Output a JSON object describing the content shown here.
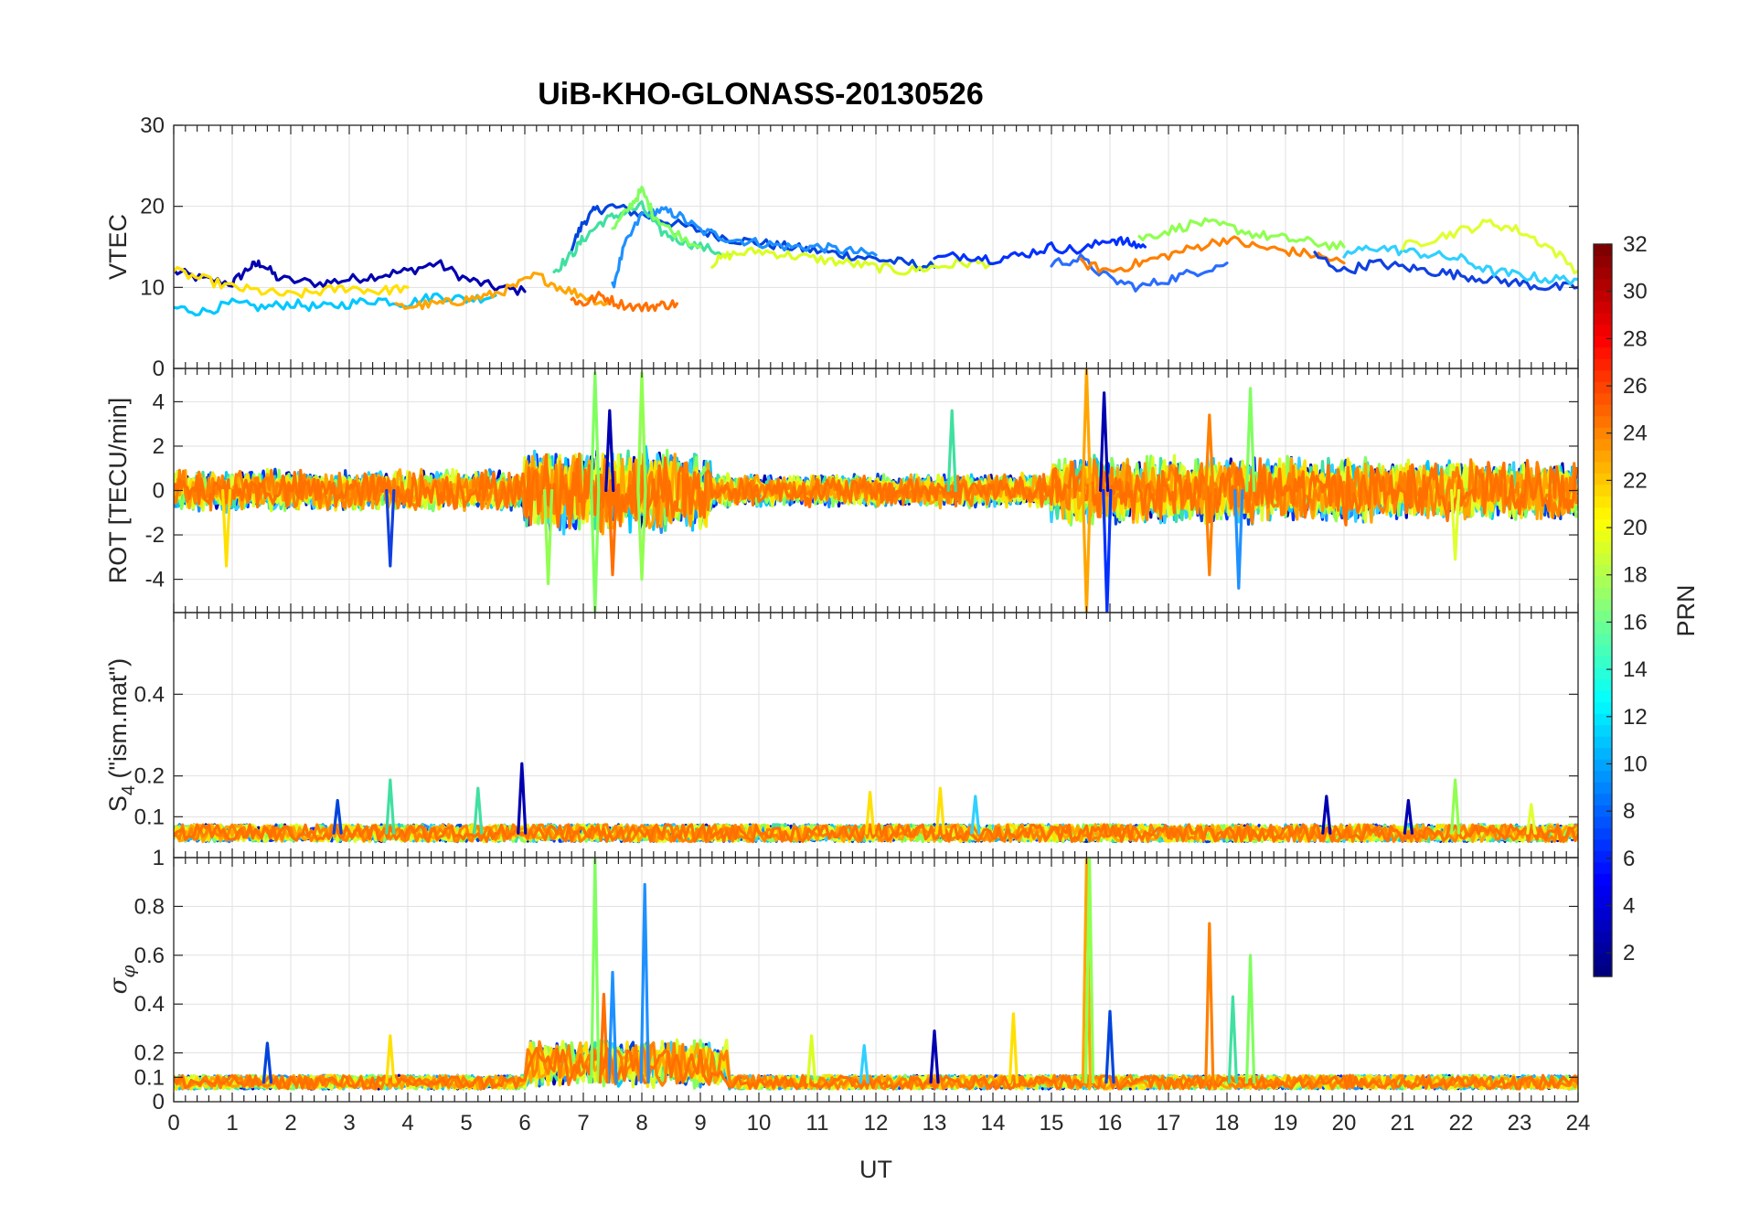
{
  "chart_data": {
    "type": "line",
    "title": "UiB-KHO-GLONASS-20130526",
    "xlabel": "UT",
    "xlim": [
      0,
      24
    ],
    "x_ticks": [
      "0",
      "1",
      "2",
      "3",
      "4",
      "5",
      "6",
      "7",
      "8",
      "9",
      "10",
      "11",
      "12",
      "13",
      "14",
      "15",
      "16",
      "17",
      "18",
      "19",
      "20",
      "21",
      "22",
      "23",
      "24"
    ],
    "colorbar": {
      "label": "PRN",
      "range": [
        1,
        32
      ],
      "ticks": [
        "2",
        "4",
        "6",
        "8",
        "10",
        "12",
        "14",
        "16",
        "18",
        "20",
        "22",
        "24",
        "26",
        "28",
        "30",
        "32"
      ],
      "colormap": "jet"
    },
    "panels": [
      {
        "id": "vtec",
        "ylabel": "VTEC",
        "ylim": [
          0,
          30
        ],
        "y_ticks": [
          "0",
          "10",
          "20",
          "30"
        ],
        "y_tick_values": [
          0,
          10,
          20,
          30
        ],
        "series": [
          {
            "color": "#0000b0",
            "x": [
              0,
              0.5,
              1,
              1.3,
              1.5,
              1.8,
              2.5,
              3,
              3.5,
              4,
              4.5,
              5,
              5.5,
              6
            ],
            "y": [
              12,
              11,
              10.5,
              12.5,
              13,
              11,
              10.5,
              11,
              11.5,
              12,
              13,
              11,
              10,
              9.5
            ]
          },
          {
            "color": "#0044dd",
            "x": [
              6.8,
              7,
              7.2,
              7.5,
              8,
              8.5,
              9,
              9.5,
              10,
              10.5,
              11,
              11.5,
              12,
              12.5,
              13
            ],
            "y": [
              15,
              18,
              19.5,
              20,
              19,
              18,
              17,
              16,
              15.5,
              15,
              14.5,
              14,
              13.5,
              13,
              12.5
            ]
          },
          {
            "color": "#1e90ff",
            "x": [
              7.5,
              7.7,
              8,
              8.3,
              8.6,
              9,
              9.5,
              10,
              10.5,
              11,
              11.5,
              12
            ],
            "y": [
              10,
              15,
              19,
              19.5,
              19,
              17,
              16,
              15.5,
              15,
              15,
              14.5,
              14
            ]
          },
          {
            "color": "#00c8ff",
            "x": [
              0,
              0.5,
              1,
              1.5,
              2,
              2.5,
              3,
              3.5,
              4,
              4.5,
              5,
              5.5
            ],
            "y": [
              7.5,
              7,
              8,
              7.5,
              8,
              7.5,
              8,
              8.5,
              8,
              9,
              8.5,
              9
            ]
          },
          {
            "color": "#40e0a0",
            "x": [
              6.5,
              6.8,
              7,
              7.3,
              7.6,
              8,
              8.3,
              8.6,
              9,
              9.5
            ],
            "y": [
              12,
              14,
              16,
              18,
              19,
              20,
              17,
              16,
              15,
              14
            ]
          },
          {
            "color": "#80ff60",
            "x": [
              7.5,
              7.8,
              8,
              8.2,
              8.5,
              9
            ],
            "y": [
              17,
              20,
              22,
              19,
              17,
              15
            ]
          },
          {
            "color": "#d8ff20",
            "x": [
              9.2,
              9.5,
              10,
              10.5,
              11,
              11.5,
              12,
              12.5,
              13,
              13.5,
              14
            ],
            "y": [
              13,
              14,
              14.5,
              14,
              13.5,
              13,
              12.5,
              12,
              12.5,
              13,
              13
            ]
          },
          {
            "color": "#ffe000",
            "x": [
              0,
              0.5,
              1,
              1.5,
              2,
              2.5,
              3,
              3.5,
              4
            ],
            "y": [
              12,
              11,
              10,
              9.5,
              9,
              9.5,
              10,
              9.5,
              10
            ]
          },
          {
            "color": "#ffa500",
            "x": [
              3.8,
              4.2,
              4.6,
              5,
              5.4,
              5.8,
              6.2,
              6.6,
              7,
              7.4
            ],
            "y": [
              7.5,
              7.8,
              8,
              8.5,
              9,
              10,
              11.5,
              10,
              9,
              8
            ]
          },
          {
            "color": "#ff7000",
            "x": [
              6.8,
              7,
              7.3,
              7.6,
              8,
              8.3,
              8.6
            ],
            "y": [
              8.5,
              8,
              9,
              8,
              7.5,
              7.8,
              8
            ]
          },
          {
            "color": "#0030ff",
            "x": [
              13,
              13.5,
              14,
              14.5,
              15,
              15.5,
              16,
              16.3,
              16.6
            ],
            "y": [
              13.5,
              14,
              13.5,
              14,
              15,
              14.5,
              16,
              15.5,
              15
            ]
          },
          {
            "color": "#2a6cff",
            "x": [
              15,
              15.5,
              16,
              16.5,
              17,
              17.5,
              18
            ],
            "y": [
              13,
              13.5,
              11,
              10,
              11,
              12,
              13
            ]
          },
          {
            "color": "#90ff50",
            "x": [
              16.5,
              17,
              17.5,
              18,
              18.5,
              19,
              19.5,
              20
            ],
            "y": [
              16,
              17,
              18,
              17.5,
              16.5,
              16,
              15.5,
              15
            ]
          },
          {
            "color": "#ff8000",
            "x": [
              15.5,
              16,
              16.5,
              17,
              17.5,
              18,
              18.5,
              19,
              19.5,
              20
            ],
            "y": [
              13,
              12,
              13,
              14,
              15,
              16,
              15,
              14.5,
              14,
              13
            ]
          },
          {
            "color": "#1040e0",
            "x": [
              19.5,
              20,
              20.5,
              21,
              21.5,
              22,
              22.5,
              23,
              23.5,
              24
            ],
            "y": [
              14,
              12,
              13,
              12.5,
              12,
              11.5,
              11,
              10.5,
              10,
              10
            ]
          },
          {
            "color": "#30d0ff",
            "x": [
              20,
              20.5,
              21,
              21.5,
              22,
              22.5,
              23,
              23.5,
              24
            ],
            "y": [
              14,
              15,
              14.5,
              14,
              13.5,
              12,
              11.5,
              11,
              11
            ]
          },
          {
            "color": "#e0ff30",
            "x": [
              21,
              21.5,
              22,
              22.5,
              23,
              23.5,
              24
            ],
            "y": [
              15,
              16,
              17,
              18,
              17,
              15,
              12
            ]
          }
        ]
      },
      {
        "id": "rot",
        "ylabel": "ROT [TECU/min]",
        "ylim": [
          -5.5,
          5.5
        ],
        "y_ticks": [
          "-4",
          "-2",
          "0",
          "2",
          "4"
        ],
        "y_tick_values": [
          -4,
          -2,
          0,
          2,
          4
        ],
        "noise_bands": [
          {
            "x0": 0,
            "x1": 6,
            "amp": 1.0
          },
          {
            "x0": 6,
            "x1": 9.2,
            "amp": 2.0
          },
          {
            "x0": 9.2,
            "x1": 15,
            "amp": 0.8
          },
          {
            "x0": 15,
            "x1": 20.5,
            "amp": 1.6
          },
          {
            "x0": 20.5,
            "x1": 24,
            "amp": 1.4
          }
        ],
        "spikes": [
          {
            "x": 7.2,
            "y": 5.3,
            "color": "#80ff60"
          },
          {
            "x": 7.2,
            "y": -5.5,
            "color": "#80ff60"
          },
          {
            "x": 8.0,
            "y": 5.3,
            "color": "#90ff50"
          },
          {
            "x": 8.0,
            "y": -4,
            "color": "#90ff50"
          },
          {
            "x": 7.45,
            "y": 3.6,
            "color": "#0000b0"
          },
          {
            "x": 7.5,
            "y": -3.8,
            "color": "#ff7000"
          },
          {
            "x": 15.6,
            "y": 5.5,
            "color": "#ffa500"
          },
          {
            "x": 15.6,
            "y": -5.5,
            "color": "#ffa500"
          },
          {
            "x": 15.95,
            "y": -5.5,
            "color": "#0030ff"
          },
          {
            "x": 15.9,
            "y": 4.4,
            "color": "#0000b0"
          },
          {
            "x": 17.7,
            "y": 3.4,
            "color": "#ff8000"
          },
          {
            "x": 17.7,
            "y": -3.8,
            "color": "#ff8000"
          },
          {
            "x": 18.4,
            "y": 4.6,
            "color": "#80ff60"
          },
          {
            "x": 18.2,
            "y": -4.4,
            "color": "#1e90ff"
          },
          {
            "x": 13.3,
            "y": 3.6,
            "color": "#40e0a0"
          },
          {
            "x": 6.4,
            "y": -4.2,
            "color": "#90ff50"
          },
          {
            "x": 3.7,
            "y": -3.4,
            "color": "#1040e0"
          },
          {
            "x": 0.9,
            "y": -3.4,
            "color": "#ffe000"
          },
          {
            "x": 21.9,
            "y": -3.1,
            "color": "#e0ff30"
          }
        ]
      },
      {
        "id": "s4",
        "ylabel": "S",
        "ylabel_subscript": "4",
        "ylabel_suffix": " (\"ism.mat\")",
        "ylim": [
          0,
          0.6
        ],
        "y_ticks": [
          "0.1",
          "0.2",
          "0.4"
        ],
        "y_tick_values": [
          0.1,
          0.2,
          0.4
        ],
        "baseline": 0.06,
        "spikes": [
          {
            "x": 5.95,
            "y": 0.23,
            "color": "#0000b0"
          },
          {
            "x": 3.7,
            "y": 0.19,
            "color": "#40e0a0"
          },
          {
            "x": 5.2,
            "y": 0.17,
            "color": "#40e0a0"
          },
          {
            "x": 13.1,
            "y": 0.17,
            "color": "#ffe000"
          },
          {
            "x": 11.9,
            "y": 0.16,
            "color": "#ffe000"
          },
          {
            "x": 13.7,
            "y": 0.15,
            "color": "#30d0ff"
          },
          {
            "x": 19.7,
            "y": 0.15,
            "color": "#0000b0"
          },
          {
            "x": 21.1,
            "y": 0.14,
            "color": "#0000b0"
          },
          {
            "x": 21.9,
            "y": 0.19,
            "color": "#90ff50"
          },
          {
            "x": 23.2,
            "y": 0.13,
            "color": "#e0ff30"
          },
          {
            "x": 2.8,
            "y": 0.14,
            "color": "#0044dd"
          }
        ]
      },
      {
        "id": "sigma_phi",
        "ylabel": "σ",
        "ylabel_subscript": "φ",
        "ylim": [
          0,
          1
        ],
        "y_ticks": [
          "0",
          "0.1",
          "0.2",
          "0.4",
          "0.6",
          "0.8",
          "1"
        ],
        "y_tick_values": [
          0,
          0.1,
          0.2,
          0.4,
          0.6,
          0.8,
          1
        ],
        "baseline": 0.08,
        "spikes": [
          {
            "x": 7.2,
            "y": 1.0,
            "color": "#80ff60"
          },
          {
            "x": 8.05,
            "y": 0.89,
            "color": "#1e90ff"
          },
          {
            "x": 7.5,
            "y": 0.53,
            "color": "#1e90ff"
          },
          {
            "x": 7.35,
            "y": 0.44,
            "color": "#ff7000"
          },
          {
            "x": 15.6,
            "y": 1.0,
            "color": "#ffa500"
          },
          {
            "x": 15.65,
            "y": 1.0,
            "color": "#90ff50"
          },
          {
            "x": 16.0,
            "y": 0.37,
            "color": "#0044dd"
          },
          {
            "x": 17.7,
            "y": 0.73,
            "color": "#ff8000"
          },
          {
            "x": 18.4,
            "y": 0.6,
            "color": "#80ff60"
          },
          {
            "x": 18.1,
            "y": 0.43,
            "color": "#40e0a0"
          },
          {
            "x": 13.0,
            "y": 0.29,
            "color": "#0000b0"
          },
          {
            "x": 14.35,
            "y": 0.36,
            "color": "#ffe000"
          },
          {
            "x": 3.7,
            "y": 0.27,
            "color": "#ffe000"
          },
          {
            "x": 1.6,
            "y": 0.24,
            "color": "#0044dd"
          },
          {
            "x": 10.9,
            "y": 0.27,
            "color": "#d8ff20"
          },
          {
            "x": 11.8,
            "y": 0.23,
            "color": "#30d0ff"
          }
        ]
      }
    ]
  }
}
